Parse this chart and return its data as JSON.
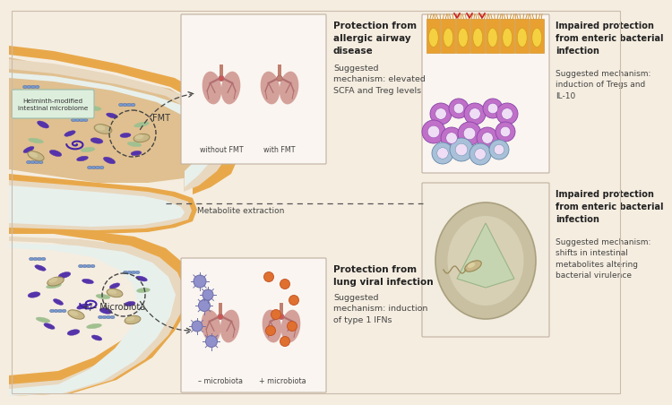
{
  "bg_color": "#f5ede0",
  "gut_outer_color": "#e8a84a",
  "gut_inner_color": "#e8d8c0",
  "gut_lumen_color": "#ddeae8",
  "lung_color": "#d4a09a",
  "lung_branch_color": "#b07070",
  "lung_trachea_color": "#c08070",
  "virus_purple": "#9090cc",
  "virus_orange": "#e07030",
  "epithelium_orange": "#e8a030",
  "epithelium_yellow": "#f0c040",
  "label_helminth": "Helminth-modified\nintestinal microbiome",
  "label_FMT": "FMT",
  "label_metabolite": "Metabolite extraction",
  "label_microbiota": "+/– Microbiota",
  "title1_bold": "Protection from\nallergic airway\ndisease",
  "title1_normal": "Suggested\nmechanism: elevated\nSCFA and Treg levels",
  "label_without_FMT": "without FMT",
  "label_with_FMT": "with FMT",
  "title2_bold": "Protection from\nlung viral infection",
  "title2_normal": "Suggested\nmechanism: induction\nof type 1 IFNs",
  "label_minus_microbiota": "– microbiota",
  "label_plus_microbiota": "+ microbiota",
  "title3_bold": "Impaired protection\nfrom enteric bacterial\ninfection",
  "title3_normal": "Suggested mechanism:\ninduction of Tregs and\nIL-10",
  "title4_bold": "Impaired protection\nfrom enteric bacterial\ninfection",
  "title4_normal": "Suggested mechanism:\nshifts in intestinal\nmetabolites altering\nbacterial virulence"
}
